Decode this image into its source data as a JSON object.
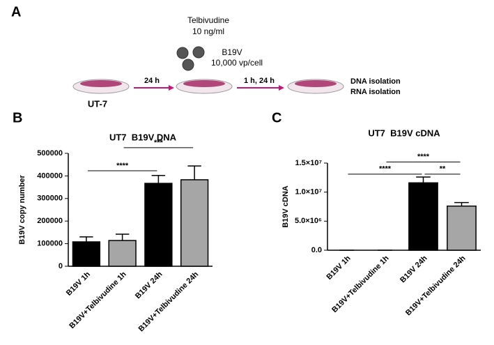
{
  "panel_a": {
    "label": "A",
    "drug": "Telbivudine",
    "dose": "10 ng/ml",
    "virus": "B19V",
    "moi": "10,000 vp/cell",
    "step1": "24 h",
    "step2": "1 h, 24 h",
    "cells": "UT-7",
    "out1": "DNA isolation",
    "out2": "RNA isolation"
  },
  "chart_data": [
    {
      "type": "bar",
      "panel_label": "B",
      "title": "UT7  B19V DNA",
      "ylabel": "B19V copy number",
      "categories": [
        "B19V 1h",
        "B19V+Telbivudine 1h",
        "B19V 24h",
        "B19V+Telbivudine 24h"
      ],
      "values": [
        108000,
        114000,
        367000,
        383000
      ],
      "errors": [
        22000,
        28000,
        35000,
        61000
      ],
      "colors": [
        "#000000",
        "#a6a6a6",
        "#000000",
        "#a6a6a6"
      ],
      "ylim": [
        0,
        500000
      ],
      "yticks": [
        0,
        100000,
        200000,
        300000,
        400000,
        500000
      ],
      "brackets": [
        {
          "from": 0,
          "to": 2,
          "y": 423000,
          "label": "****"
        },
        {
          "from": 1,
          "to": 3,
          "y": 525000,
          "label": "***"
        }
      ]
    },
    {
      "type": "bar",
      "panel_label": "C",
      "title": "UT7  B19V cDNA",
      "ylabel": "B19V cDNA",
      "categories": [
        "B19V 1h",
        "B19V+Telbivudine 1h",
        "B19V 24h",
        "B19V+Telbivudine 24h"
      ],
      "values": [
        0,
        0,
        11600000,
        7600000
      ],
      "errors": [
        0,
        0,
        1000000,
        600000
      ],
      "colors": [
        "#000000",
        "#a6a6a6",
        "#000000",
        "#a6a6a6"
      ],
      "ylim": [
        0,
        15000000
      ],
      "yticks": [
        {
          "value": 0,
          "label": "0.0"
        },
        {
          "value": 5000000,
          "label": "5.0×10⁶"
        },
        {
          "value": 10000000,
          "label": "1.0×10⁷"
        },
        {
          "value": 15000000,
          "label": "1.5×10⁷"
        }
      ],
      "brackets": [
        {
          "from": 0,
          "to": 2,
          "y": 13100000,
          "label": "****"
        },
        {
          "from": 2,
          "to": 3,
          "y": 13100000,
          "label": "**"
        },
        {
          "from": 1,
          "to": 3,
          "y": 15200000,
          "label": "****"
        }
      ]
    }
  ]
}
